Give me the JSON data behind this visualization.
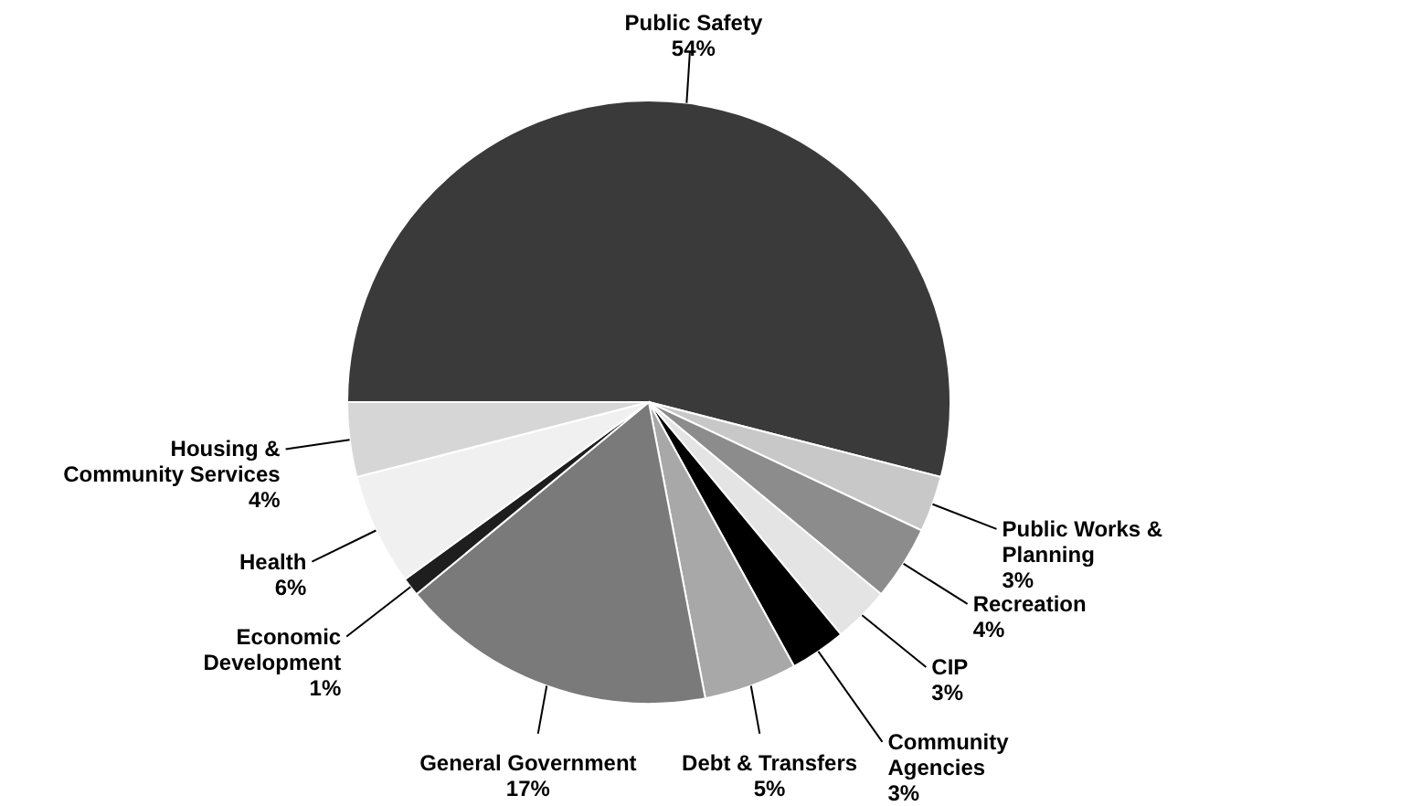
{
  "chart_data": {
    "type": "pie",
    "categories": [
      "Public Safety",
      "Public Works &\nPlanning",
      "Recreation",
      "CIP",
      "Community\nAgencies",
      "Debt & Transfers",
      "General Government",
      "Economic\nDevelopment",
      "Health",
      "Housing &\nCommunity Services"
    ],
    "values": [
      54,
      3,
      4,
      3,
      3,
      5,
      17,
      1,
      6,
      4
    ],
    "value_labels": [
      "54%",
      "3%",
      "4%",
      "3%",
      "3%",
      "5%",
      "17%",
      "1%",
      "6%",
      "4%"
    ],
    "colors": [
      "#3a3a3a",
      "#c8c8c8",
      "#8c8c8c",
      "#e4e4e4",
      "#000000",
      "#a8a8a8",
      "#7a7a7a",
      "#1e1e1e",
      "#f0f0f0",
      "#d6d6d6"
    ]
  }
}
